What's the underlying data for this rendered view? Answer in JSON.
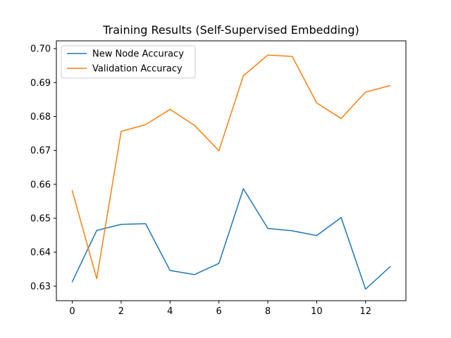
{
  "chart_data": {
    "type": "line",
    "title": "Training Results (Self-Supervised Embedding)",
    "xlabel": "",
    "ylabel": "",
    "x": [
      0,
      1,
      2,
      3,
      4,
      5,
      6,
      7,
      8,
      9,
      10,
      11,
      12,
      13
    ],
    "xlim": [
      -0.65,
      13.65
    ],
    "ylim": [
      0.6257,
      0.7023
    ],
    "x_ticks": [
      0,
      2,
      4,
      6,
      8,
      10,
      12
    ],
    "y_ticks": [
      0.63,
      0.64,
      0.65,
      0.66,
      0.67,
      0.68,
      0.69,
      0.7
    ],
    "y_tick_labels": [
      "0.63",
      "0.64",
      "0.65",
      "0.66",
      "0.67",
      "0.68",
      "0.69",
      "0.70"
    ],
    "grid": false,
    "legend_position": "top-left",
    "series": [
      {
        "name": "New Node Accuracy",
        "color": "#1f77b4",
        "values": [
          0.6313,
          0.6464,
          0.6482,
          0.6484,
          0.6346,
          0.6334,
          0.6367,
          0.6587,
          0.647,
          0.6463,
          0.6449,
          0.6502,
          0.6291,
          0.6357
        ]
      },
      {
        "name": "Validation Accuracy",
        "color": "#ff7f0e",
        "values": [
          0.6581,
          0.6322,
          0.6756,
          0.6776,
          0.6821,
          0.6774,
          0.6699,
          0.692,
          0.6981,
          0.6977,
          0.684,
          0.6794,
          0.6872,
          0.6891
        ]
      }
    ]
  }
}
